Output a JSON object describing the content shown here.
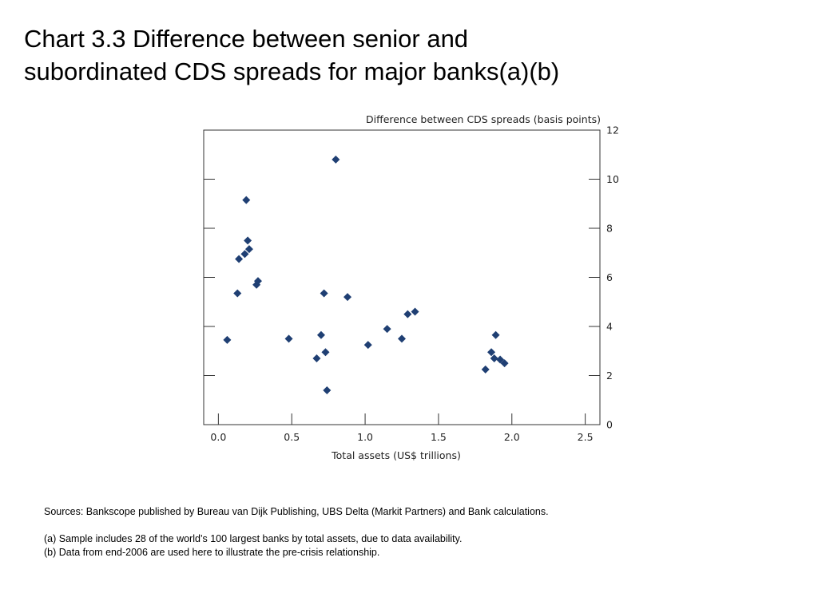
{
  "slide": {
    "title": "Chart 3.3  Difference between senior and\nsubordinated CDS spreads for major banks(a)(b)"
  },
  "chart_data": {
    "type": "scatter",
    "ylabel": "Difference between CDS spreads (basis points)",
    "xlabel": "Total assets (US$ trillions)",
    "xlim": [
      -0.1,
      2.6
    ],
    "ylim": [
      0,
      12
    ],
    "x_ticks": [
      "0.0",
      "0.5",
      "1.0",
      "1.5",
      "2.0",
      "2.5"
    ],
    "y_ticks": [
      "0",
      "2",
      "4",
      "6",
      "8",
      "10",
      "12"
    ],
    "grid": false,
    "marker": "diamond",
    "color": "#1f3f73",
    "points": [
      {
        "x": 0.06,
        "y": 3.45
      },
      {
        "x": 0.13,
        "y": 5.35
      },
      {
        "x": 0.14,
        "y": 6.75
      },
      {
        "x": 0.18,
        "y": 6.95
      },
      {
        "x": 0.19,
        "y": 9.15
      },
      {
        "x": 0.2,
        "y": 7.5
      },
      {
        "x": 0.21,
        "y": 7.15
      },
      {
        "x": 0.26,
        "y": 5.7
      },
      {
        "x": 0.27,
        "y": 5.85
      },
      {
        "x": 0.48,
        "y": 3.5
      },
      {
        "x": 0.67,
        "y": 2.7
      },
      {
        "x": 0.7,
        "y": 3.65
      },
      {
        "x": 0.72,
        "y": 5.35
      },
      {
        "x": 0.73,
        "y": 2.95
      },
      {
        "x": 0.74,
        "y": 1.4
      },
      {
        "x": 0.8,
        "y": 10.8
      },
      {
        "x": 0.88,
        "y": 5.2
      },
      {
        "x": 1.02,
        "y": 3.25
      },
      {
        "x": 1.15,
        "y": 3.9
      },
      {
        "x": 1.25,
        "y": 3.5
      },
      {
        "x": 1.29,
        "y": 4.5
      },
      {
        "x": 1.34,
        "y": 4.6
      },
      {
        "x": 1.82,
        "y": 2.25
      },
      {
        "x": 1.86,
        "y": 2.95
      },
      {
        "x": 1.88,
        "y": 2.7
      },
      {
        "x": 1.89,
        "y": 3.65
      },
      {
        "x": 1.92,
        "y": 2.65
      },
      {
        "x": 1.95,
        "y": 2.5
      }
    ]
  },
  "notes": {
    "sources": "Sources:  Bankscope published by Bureau van Dijk Publishing, UBS Delta (Markit Partners) and Bank calculations.",
    "note_a": "(a) Sample includes 28 of the world’s 100 largest banks by total assets, due to data availability.",
    "note_b": "(b) Data from end-2006 are used here to illustrate the pre-crisis relationship."
  }
}
